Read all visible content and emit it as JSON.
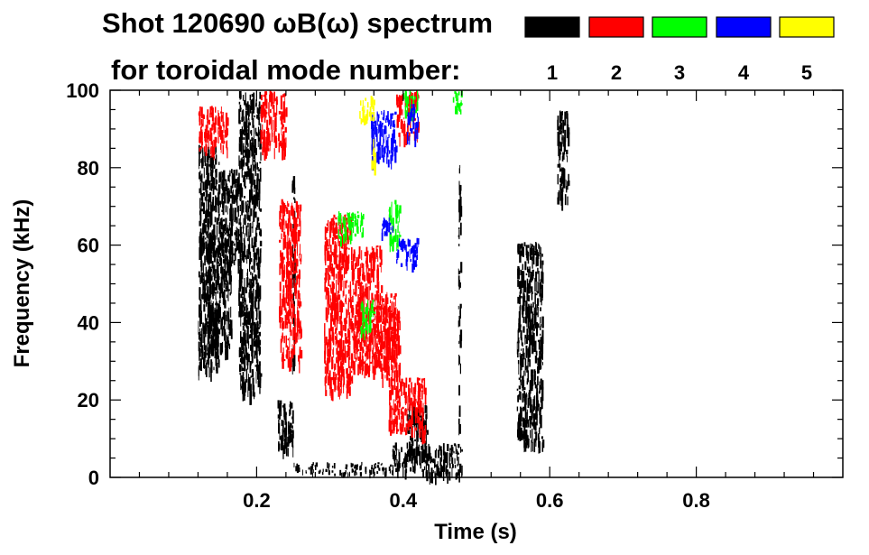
{
  "chart_data": {
    "type": "heatmap",
    "title": "Shot 120690 ωB(ω) spectrum",
    "subtitle": "for toroidal mode number:",
    "xlabel": "Time (s)",
    "ylabel": "Frequency (kHz)",
    "xlim": [
      0.0,
      1.0
    ],
    "ylim": [
      0,
      100
    ],
    "x_ticks": [
      {
        "value": 0.2,
        "label": "0.2"
      },
      {
        "value": 0.4,
        "label": "0.4"
      },
      {
        "value": 0.6,
        "label": "0.6"
      },
      {
        "value": 0.8,
        "label": "0.8"
      }
    ],
    "y_ticks": [
      {
        "value": 0,
        "label": "0"
      },
      {
        "value": 20,
        "label": "20"
      },
      {
        "value": 40,
        "label": "40"
      },
      {
        "value": 60,
        "label": "60"
      },
      {
        "value": 80,
        "label": "80"
      },
      {
        "value": 100,
        "label": "100"
      }
    ],
    "legend": {
      "placement": "top-right",
      "entries": [
        {
          "label": "1",
          "color": "#000000"
        },
        {
          "label": "2",
          "color": "#ff0000"
        },
        {
          "label": "3",
          "color": "#00ff00"
        },
        {
          "label": "4",
          "color": "#0000ff"
        },
        {
          "label": "5",
          "color": "#ffff00"
        }
      ]
    },
    "regions": [
      {
        "mode": 1,
        "t0": 0.12,
        "t1": 0.148,
        "f0": 28,
        "f1": 86
      },
      {
        "mode": 1,
        "t0": 0.148,
        "t1": 0.175,
        "f0": 55,
        "f1": 80
      },
      {
        "mode": 1,
        "t0": 0.13,
        "t1": 0.165,
        "f0": 33,
        "f1": 62
      },
      {
        "mode": 1,
        "t0": 0.175,
        "t1": 0.205,
        "f0": 22,
        "f1": 100
      },
      {
        "mode": 1,
        "t0": 0.228,
        "t1": 0.25,
        "f0": 7,
        "f1": 20
      },
      {
        "mode": 1,
        "t0": 0.248,
        "t1": 0.252,
        "f0": 28,
        "f1": 78
      },
      {
        "mode": 1,
        "t0": 0.25,
        "t1": 0.39,
        "f0": 1,
        "f1": 4
      },
      {
        "mode": 1,
        "t0": 0.385,
        "t1": 0.435,
        "f0": 2,
        "f1": 9
      },
      {
        "mode": 1,
        "t0": 0.405,
        "t1": 0.432,
        "f0": 6,
        "f1": 19
      },
      {
        "mode": 1,
        "t0": 0.43,
        "t1": 0.48,
        "f0": 1,
        "f1": 9
      },
      {
        "mode": 1,
        "t0": 0.475,
        "t1": 0.478,
        "f0": 13,
        "f1": 82
      },
      {
        "mode": 1,
        "t0": 0.555,
        "t1": 0.59,
        "f0": 9,
        "f1": 61
      },
      {
        "mode": 1,
        "t0": 0.61,
        "t1": 0.625,
        "f0": 72,
        "f1": 95
      },
      {
        "mode": 2,
        "t0": 0.292,
        "t1": 0.33,
        "f0": 22,
        "f1": 68
      },
      {
        "mode": 2,
        "t0": 0.33,
        "t1": 0.37,
        "f0": 28,
        "f1": 60
      },
      {
        "mode": 2,
        "t0": 0.36,
        "t1": 0.39,
        "f0": 30,
        "f1": 48
      },
      {
        "mode": 2,
        "t0": 0.37,
        "t1": 0.395,
        "f0": 26,
        "f1": 44
      },
      {
        "mode": 2,
        "t0": 0.38,
        "t1": 0.43,
        "f0": 12,
        "f1": 26
      },
      {
        "mode": 2,
        "t0": 0.205,
        "t1": 0.24,
        "f0": 85,
        "f1": 100
      },
      {
        "mode": 2,
        "t0": 0.12,
        "t1": 0.16,
        "f0": 85,
        "f1": 96
      },
      {
        "mode": 2,
        "t0": 0.23,
        "t1": 0.26,
        "f0": 30,
        "f1": 72
      },
      {
        "mode": 2,
        "t0": 0.39,
        "t1": 0.42,
        "f0": 88,
        "f1": 100
      },
      {
        "mode": 3,
        "t0": 0.31,
        "t1": 0.345,
        "f0": 62,
        "f1": 69
      },
      {
        "mode": 3,
        "t0": 0.38,
        "t1": 0.395,
        "f0": 60,
        "f1": 72
      },
      {
        "mode": 3,
        "t0": 0.4,
        "t1": 0.42,
        "f0": 94,
        "f1": 100
      },
      {
        "mode": 3,
        "t0": 0.465,
        "t1": 0.48,
        "f0": 95,
        "f1": 100
      },
      {
        "mode": 3,
        "t0": 0.34,
        "t1": 0.36,
        "f0": 38,
        "f1": 46
      },
      {
        "mode": 4,
        "t0": 0.355,
        "t1": 0.39,
        "f0": 82,
        "f1": 95
      },
      {
        "mode": 4,
        "t0": 0.37,
        "t1": 0.385,
        "f0": 62,
        "f1": 68
      },
      {
        "mode": 4,
        "t0": 0.39,
        "t1": 0.42,
        "f0": 55,
        "f1": 62
      },
      {
        "mode": 4,
        "t0": 0.405,
        "t1": 0.42,
        "f0": 88,
        "f1": 97
      },
      {
        "mode": 5,
        "t0": 0.34,
        "t1": 0.36,
        "f0": 92,
        "f1": 99
      },
      {
        "mode": 5,
        "t0": 0.355,
        "t1": 0.362,
        "f0": 80,
        "f1": 88
      }
    ]
  }
}
